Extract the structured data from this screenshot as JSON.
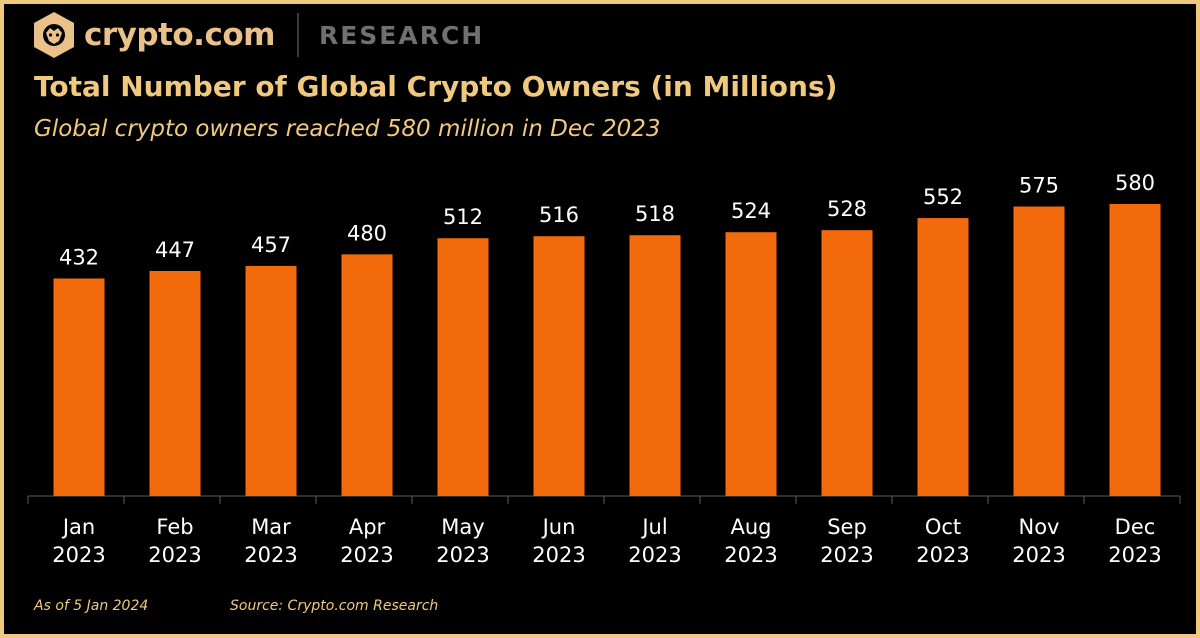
{
  "header": {
    "brand": "crypto.com",
    "section": "RESEARCH",
    "logo_icon": "lion-shield-icon"
  },
  "colors": {
    "background": "#000000",
    "accent_gold": "#f1c97e",
    "bar": "#f26a0c",
    "label": "#ffffff"
  },
  "chart_data": {
    "type": "bar",
    "title": "Total Number of Global Crypto Owners (in Millions)",
    "subtitle": "Global crypto owners reached 580 million in Dec 2023",
    "xlabel": "",
    "ylabel": "",
    "grid": false,
    "legend": "none",
    "ylim": [
      0,
      580
    ],
    "categories": [
      [
        "Jan",
        "2023"
      ],
      [
        "Feb",
        "2023"
      ],
      [
        "Mar",
        "2023"
      ],
      [
        "Apr",
        "2023"
      ],
      [
        "May",
        "2023"
      ],
      [
        "Jun",
        "2023"
      ],
      [
        "Jul",
        "2023"
      ],
      [
        "Aug",
        "2023"
      ],
      [
        "Sep",
        "2023"
      ],
      [
        "Oct",
        "2023"
      ],
      [
        "Nov",
        "2023"
      ],
      [
        "Dec",
        "2023"
      ]
    ],
    "values": [
      432,
      447,
      457,
      480,
      512,
      516,
      518,
      524,
      528,
      552,
      575,
      580
    ],
    "data_labels": [
      "432",
      "447",
      "457",
      "480",
      "512",
      "516",
      "518",
      "524",
      "528",
      "552",
      "575",
      "580"
    ]
  },
  "footer": {
    "as_of": "As of 5 Jan 2024",
    "source": "Source: Crypto.com Research"
  }
}
